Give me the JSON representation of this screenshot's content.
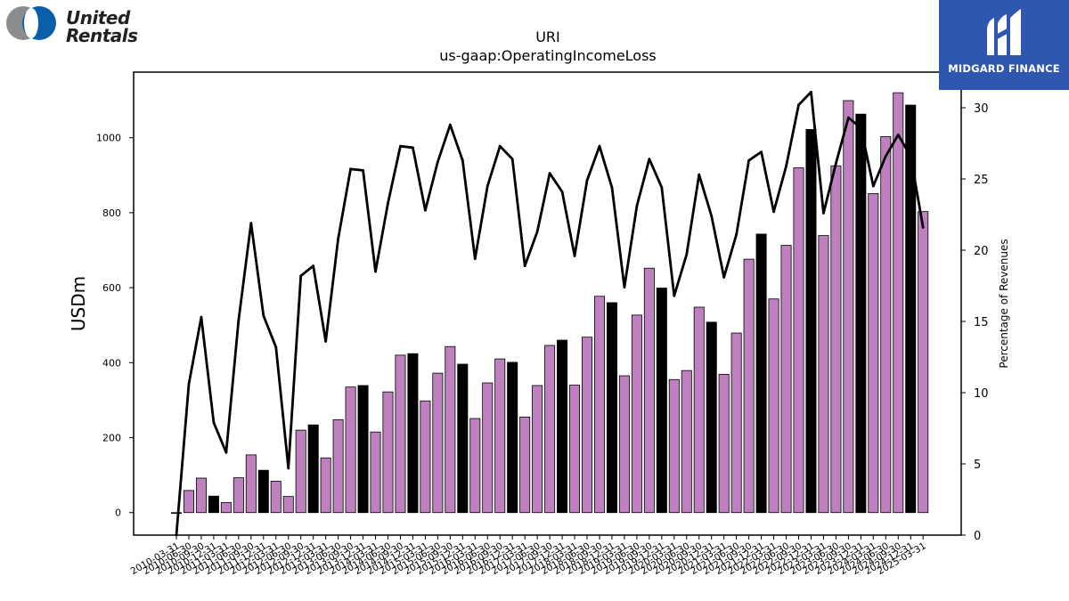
{
  "header": {
    "logo_left_line1": "United",
    "logo_left_line2": "Rentals",
    "logo_right_text": "MIDGARD FINANCE"
  },
  "colors": {
    "bar_regular": "#bf80bf",
    "bar_q4": "#000000",
    "line": "#000000",
    "brand_blue": "#2f57b0"
  },
  "chart_data": {
    "type": "bar",
    "title": "URI",
    "subtitle": "us-gaap:OperatingIncomeLoss",
    "ylabel": "USDm",
    "y2label": "Percentage of Revenues",
    "ylim": [
      -60,
      1175
    ],
    "y2lim": [
      0,
      32.5
    ],
    "yticks": [
      0,
      200,
      400,
      600,
      800,
      1000
    ],
    "y2ticks": [
      0,
      5,
      10,
      15,
      20,
      25,
      30
    ],
    "grid": false,
    "categories": [
      "2010-03-31",
      "2010-06-30",
      "2010-09-30",
      "2010-12-31",
      "2011-03-31",
      "2011-06-30",
      "2011-09-30",
      "2011-12-31",
      "2012-03-31",
      "2012-06-30",
      "2012-09-30",
      "2012-12-31",
      "2013-03-31",
      "2013-06-30",
      "2013-09-30",
      "2013-12-31",
      "2014-03-31",
      "2014-06-30",
      "2014-09-30",
      "2014-12-31",
      "2015-03-31",
      "2015-06-30",
      "2015-09-30",
      "2015-12-31",
      "2016-03-31",
      "2016-06-30",
      "2016-09-30",
      "2016-12-31",
      "2017-03-31",
      "2017-06-30",
      "2017-09-30",
      "2017-12-31",
      "2018-03-31",
      "2018-06-30",
      "2018-09-30",
      "2018-12-31",
      "2019-03-31",
      "2019-06-30",
      "2019-09-30",
      "2019-12-31",
      "2020-03-31",
      "2020-06-30",
      "2020-09-30",
      "2020-12-31",
      "2021-03-31",
      "2021-06-30",
      "2021-09-30",
      "2021-12-31",
      "2022-03-31",
      "2022-06-30",
      "2022-09-30",
      "2022-12-31",
      "2023-03-31",
      "2023-06-30",
      "2023-09-30",
      "2023-12-31",
      "2024-03-31",
      "2024-06-30",
      "2024-09-30",
      "2024-12-31",
      "2025-03-31"
    ],
    "x_tick_labels_shown": [
      "2010-03-31",
      "2010-06-30",
      "2010-09-30",
      "2010-12-31",
      "2011-03-31",
      "2011-06-30",
      "2011-09-30",
      "2011-12-31",
      "2012-03-31",
      "2012-06-30",
      "2012-09-30",
      "2012-12-31",
      "2013-03-31",
      "2013-06-30",
      "2013-09-30",
      "2013-12-31",
      "2014-03-31",
      "2014-06-30",
      "2014-09-30",
      "2014-12-31",
      "2015-03-31",
      "2015-06-30",
      "2015-09-30",
      "2015-12-31",
      "2016-03-31",
      "2016-06-30",
      "2016-09-30",
      "2016-12-31",
      "2017-03-31",
      "2017-06-30",
      "2017-09-30",
      "2017-12-31",
      "2018-03-31",
      "2018-06-30",
      "2018-09-30",
      "2018-12-31",
      "2019-03-31",
      "2019-06-30",
      "2019-09-30",
      "2019-12-31",
      "2020-03-31",
      "2020-06-30",
      "2020-09-30",
      "2020-12-31",
      "2021-03-31",
      "2021-06-30",
      "2021-09-30",
      "2021-12-31",
      "2022-03-31",
      "2022-06-30",
      "2022-09-30",
      "2022-12-31",
      "2023-03-31",
      "2023-06-30",
      "2023-09-30",
      "2023-12-31",
      "2024-03-31",
      "2024-06-30",
      "2024-09-30",
      "2024-12-31",
      "2025-03-31"
    ],
    "series": [
      {
        "type": "bar",
        "values": [
          -1,
          59,
          92,
          44,
          27,
          93,
          154,
          113,
          84,
          43,
          220,
          234,
          146,
          248,
          335,
          339,
          215,
          322,
          420,
          424,
          298,
          372,
          443,
          396,
          251,
          346,
          410,
          401,
          255,
          339,
          446,
          460,
          340,
          468,
          577,
          560,
          365,
          527,
          652,
          599,
          355,
          379,
          548,
          508,
          369,
          479,
          676,
          743,
          570,
          713,
          920,
          1022,
          739,
          925,
          1099,
          1063,
          851,
          1003,
          1120,
          1087,
          803
        ],
        "q4_highlight": [
          false,
          false,
          false,
          true,
          false,
          false,
          false,
          true,
          false,
          false,
          false,
          true,
          false,
          false,
          false,
          true,
          false,
          false,
          false,
          true,
          false,
          false,
          false,
          true,
          false,
          false,
          false,
          true,
          false,
          false,
          false,
          true,
          false,
          false,
          false,
          true,
          false,
          false,
          false,
          true,
          false,
          false,
          false,
          true,
          false,
          false,
          false,
          true,
          false,
          false,
          false,
          true,
          false,
          false,
          false,
          true,
          false,
          false,
          false,
          true,
          false
        ]
      },
      {
        "type": "line",
        "axis": "right",
        "values": [
          0,
          10.6,
          15.3,
          7.9,
          5.8,
          15.1,
          21.9,
          15.4,
          13.2,
          4.7,
          18.2,
          18.9,
          13.6,
          20.8,
          25.7,
          25.6,
          18.5,
          23.3,
          27.3,
          27.2,
          22.8,
          26.2,
          28.8,
          26.3,
          19.4,
          24.5,
          27.3,
          26.4,
          18.9,
          21.3,
          25.4,
          24.1,
          19.6,
          24.9,
          27.3,
          24.4,
          17.4,
          23.1,
          26.4,
          24.4,
          16.8,
          19.7,
          25.3,
          22.4,
          18.1,
          21.1,
          26.3,
          26.9,
          22.7,
          25.9,
          30.2,
          31.1,
          22.6,
          26.1,
          29.3,
          28.6,
          24.5,
          26.6,
          28.1,
          26.6,
          21.6
        ]
      }
    ]
  }
}
